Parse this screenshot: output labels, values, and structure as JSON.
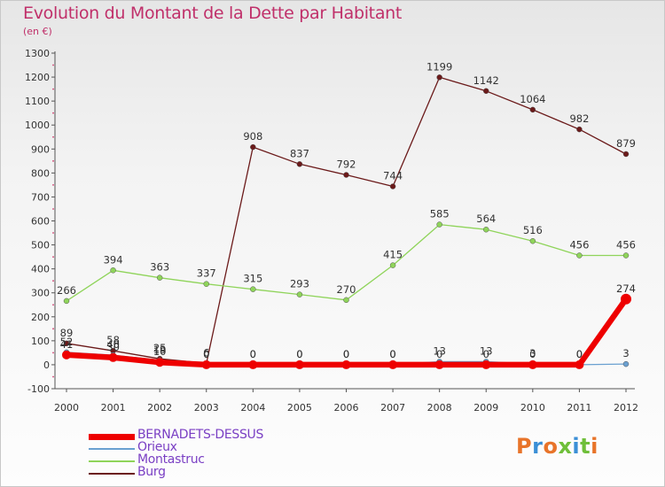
{
  "header": {
    "title": "Evolution du Montant de la Dette par Habitant",
    "unit": "(en €)"
  },
  "brand": {
    "text": "Proxiti",
    "colors": [
      "#e8742a",
      "#3b8fd6",
      "#e8742a",
      "#6fbf3a",
      "#3b8fd6",
      "#6fbf3a",
      "#e8742a"
    ]
  },
  "chart_data": {
    "type": "line",
    "x": [
      "2000",
      "2001",
      "2002",
      "2003",
      "2004",
      "2005",
      "2006",
      "2007",
      "2008",
      "2009",
      "2010",
      "2011",
      "2012"
    ],
    "ylim": [
      -100,
      1300
    ],
    "yticks": [
      -100,
      0,
      100,
      200,
      300,
      400,
      500,
      600,
      700,
      800,
      900,
      1000,
      1100,
      1200,
      1300
    ],
    "grid": false,
    "legend_position": "bottom-left",
    "series": [
      {
        "name": "Burg",
        "color": "#6b1a1a",
        "values": [
          89,
          58,
          25,
          6,
          908,
          837,
          792,
          744,
          1199,
          1142,
          1064,
          982,
          879
        ],
        "labels": [
          "89",
          "58",
          "25",
          "6",
          "908",
          "837",
          "792",
          "744",
          "1199",
          "1142",
          "1064",
          "982",
          "879"
        ]
      },
      {
        "name": "Montastruc",
        "color": "#8fd45a",
        "values": [
          266,
          394,
          363,
          337,
          315,
          293,
          270,
          415,
          585,
          564,
          516,
          456,
          456
        ],
        "labels": [
          "266",
          "394",
          "363",
          "337",
          "315",
          "293",
          "270",
          "415",
          "585",
          "564",
          "516",
          "456",
          "456"
        ]
      },
      {
        "name": "Orieux",
        "color": "#6aa0d0",
        "values": [
          52,
          40,
          19,
          0,
          0,
          0,
          0,
          0,
          13,
          13,
          3,
          0,
          3
        ],
        "labels": [
          "52",
          "40",
          "19",
          "0",
          "0",
          "0",
          "0",
          "0",
          "13",
          "13",
          "3",
          "0",
          "3"
        ]
      },
      {
        "name": "BERNADETS-DESSUS",
        "color": "#ee0000",
        "values": [
          41,
          30,
          10,
          0,
          0,
          0,
          0,
          0,
          0,
          0,
          0,
          0,
          274
        ],
        "labels": [
          "41",
          "30",
          "10",
          "0",
          "0",
          "0",
          "0",
          "0",
          "0",
          "0",
          "0",
          "0",
          "274"
        ]
      }
    ]
  }
}
